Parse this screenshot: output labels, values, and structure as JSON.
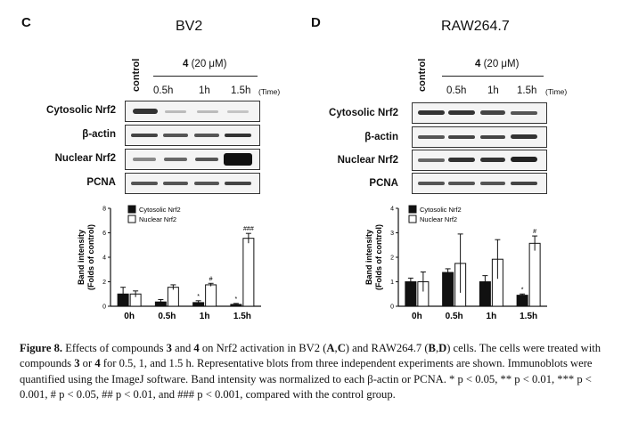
{
  "panel_c": {
    "letter": "C",
    "title": "BV2",
    "control_label": "control",
    "treatment_label": "4 (20 μM)",
    "time_labels": [
      "0.5h",
      "1h",
      "1.5h"
    ],
    "time_unit": "(Time)",
    "blot_rows": [
      "Cytosolic Nrf2",
      "β-actin",
      "Nuclear Nrf2",
      "PCNA"
    ]
  },
  "panel_d": {
    "letter": "D",
    "title": "RAW264.7",
    "control_label": "control",
    "treatment_label": "4 (20 μM)",
    "time_labels": [
      "0.5h",
      "1h",
      "1.5h"
    ],
    "time_unit": "(Time)",
    "blot_rows": [
      "Cytosolic Nrf2",
      "β-actin",
      "Nuclear Nrf2",
      "PCNA"
    ]
  },
  "chart_data": [
    {
      "type": "bar",
      "panel": "C",
      "categories": [
        "0h",
        "0.5h",
        "1h",
        "1.5h"
      ],
      "ylabel_line1": "Band intensity",
      "ylabel_line2": "(Folds of control)",
      "ylim": [
        0,
        8
      ],
      "yticks": [
        "0",
        "2",
        "4",
        "6",
        "8"
      ],
      "legend": [
        "Cytosolic Nrf2",
        "Nuclear Nrf2"
      ],
      "series": [
        {
          "name": "Cytosolic Nrf2",
          "fill": "#111111",
          "values": [
            1.0,
            0.35,
            0.3,
            0.15
          ],
          "errors": [
            0.55,
            0.2,
            0.15,
            0.08
          ],
          "marks": [
            "",
            "",
            "*",
            "*"
          ]
        },
        {
          "name": "Nuclear Nrf2",
          "fill": "#ffffff",
          "values": [
            1.0,
            1.55,
            1.75,
            5.55
          ],
          "errors": [
            0.25,
            0.2,
            0.12,
            0.4
          ],
          "marks": [
            "",
            "",
            "#",
            "###"
          ]
        }
      ]
    },
    {
      "type": "bar",
      "panel": "D",
      "categories": [
        "0h",
        "0.5h",
        "1h",
        "1.5h"
      ],
      "ylabel_line1": "Band intensity",
      "ylabel_line2": "(Folds of control)",
      "ylim": [
        0,
        4
      ],
      "yticks": [
        "0",
        "1",
        "2",
        "3",
        "4"
      ],
      "legend": [
        "Cytosolic Nrf2",
        "Nuclear Nrf2"
      ],
      "series": [
        {
          "name": "Cytosolic Nrf2",
          "fill": "#111111",
          "values": [
            1.0,
            1.38,
            1.0,
            0.45
          ],
          "errors": [
            0.15,
            0.15,
            0.25,
            0.05
          ],
          "marks": [
            "",
            "",
            "",
            "*"
          ]
        },
        {
          "name": "Nuclear Nrf2",
          "fill": "#ffffff",
          "values": [
            1.0,
            1.75,
            1.92,
            2.57
          ],
          "errors": [
            0.4,
            1.2,
            0.8,
            0.3
          ],
          "marks": [
            "",
            "",
            "",
            "#"
          ]
        }
      ]
    }
  ],
  "caption": {
    "label": "Figure 8.",
    "text_1": " Effects of compounds ",
    "c3": "3",
    "text_2": " and ",
    "c4": "4",
    "text_3": " on Nrf2 activation in BV2 (",
    "AC": "A",
    "comma1": ",",
    "C": "C",
    "text_4": ") and RAW264.7 (",
    "B": "B",
    "comma2": ",",
    "D": "D",
    "text_5": ") cells. The cells were treated with compounds ",
    "c3b": "3",
    "text_6": " or ",
    "c4b": "4",
    "text_7": " for 0.5, 1, and 1.5 h. Representative blots from three independent experiments are shown. Immunoblots were quantified using the ImageJ software. Band intensity was normalized to each β-actin or PCNA. * p < 0.05, ** p < 0.01, *** p < 0.001, # p < 0.05, ## p < 0.01, and ### p < 0.001, compared with the control group."
  }
}
